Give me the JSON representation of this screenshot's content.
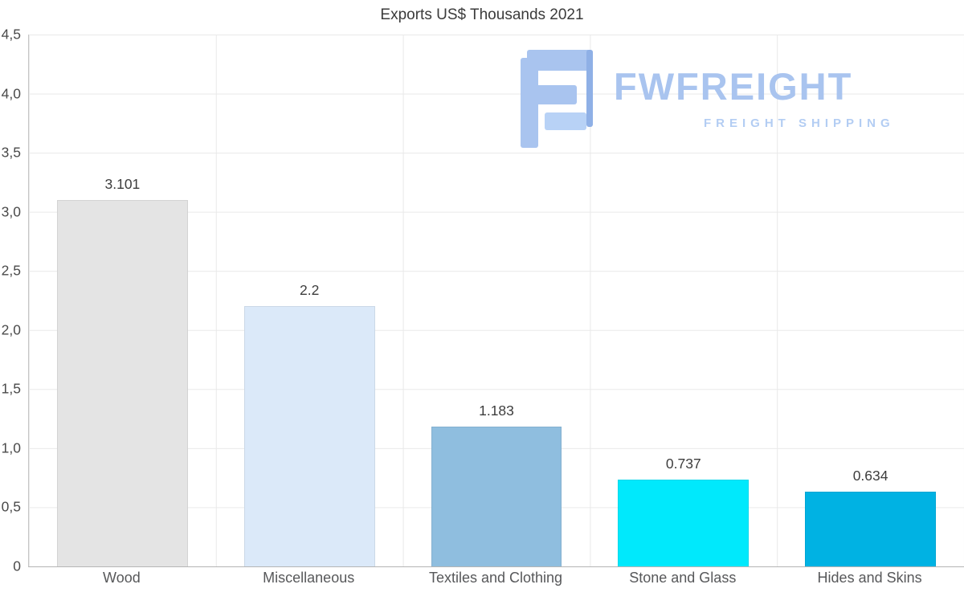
{
  "title": "Exports US$ Thousands 2021",
  "watermark": {
    "brand": "FWFREIGHT",
    "tagline": "FREIGHT SHIPPING",
    "color": "#a9c4ef"
  },
  "chart_data": {
    "type": "bar",
    "title": "Exports US$ Thousands 2021",
    "categories": [
      "Wood",
      "Miscellaneous",
      "Textiles and Clothing",
      "Stone and Glass",
      "Hides and Skins"
    ],
    "values": [
      3.101,
      2.2,
      1.183,
      0.737,
      0.634
    ],
    "value_labels": [
      "3.101",
      "2.2",
      "1.183",
      "0.737",
      "0.634"
    ],
    "bar_colors": [
      "#e4e4e4",
      "#dbe9f9",
      "#8fbedf",
      "#00e9fc",
      "#00b2e3"
    ],
    "xlabel": "",
    "ylabel": "",
    "ylim": [
      0,
      4.5
    ],
    "ytick_labels": [
      "4,5",
      "4,0",
      "3,5",
      "3,0",
      "2,5",
      "2,0",
      "1,5",
      "1,0",
      "0,5",
      "0"
    ],
    "grid": true,
    "legend": false
  }
}
